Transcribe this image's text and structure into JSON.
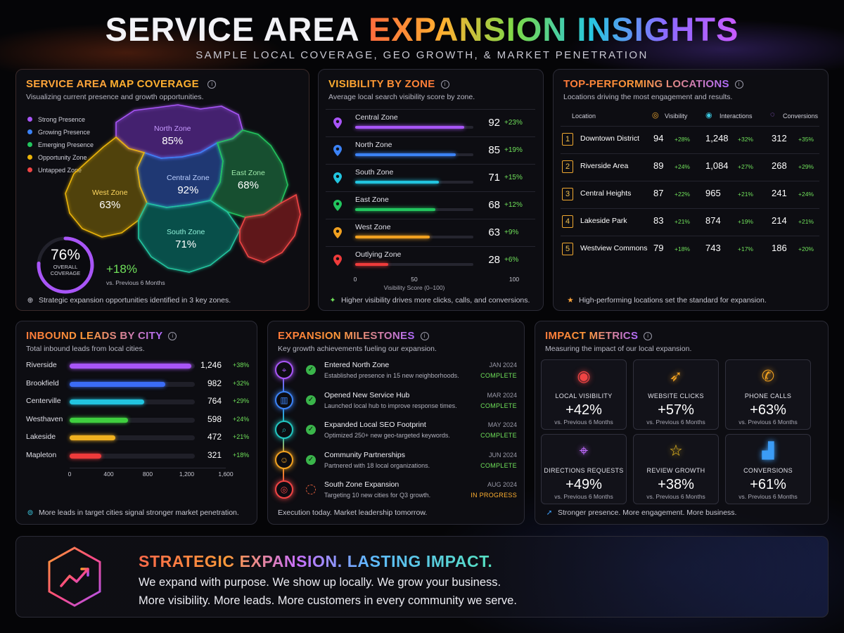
{
  "header": {
    "title_white": "SERVICE AREA",
    "title_gradient": "EXPANSION INSIGHTS",
    "subtitle": "SAMPLE LOCAL COVERAGE, GEO GROWTH, & MARKET PENETRATION"
  },
  "map_panel": {
    "title_a": "SERVICE AREA",
    "title_b": "MAP COVERAGE",
    "subtitle": "Visualizing current presence and growth opportunities.",
    "legend": [
      {
        "label": "Strong Presence",
        "color": "#a855f7"
      },
      {
        "label": "Growing Presence",
        "color": "#3b82f6"
      },
      {
        "label": "Emerging Presence",
        "color": "#22c55e"
      },
      {
        "label": "Opportunity Zone",
        "color": "#eab308"
      },
      {
        "label": "Untapped Zone",
        "color": "#ef4444"
      }
    ],
    "zones": [
      {
        "name": "North Zone",
        "value": "85%"
      },
      {
        "name": "Central Zone",
        "value": "92%"
      },
      {
        "name": "East Zone",
        "value": "68%"
      },
      {
        "name": "West Zone",
        "value": "63%"
      },
      {
        "name": "South Zone",
        "value": "71%"
      }
    ],
    "coverage": {
      "value": "76%",
      "label1": "OVERALL",
      "label2": "COVERAGE",
      "fraction": 0.76
    },
    "growth": {
      "value": "+18%",
      "label": "vs. Previous 6 Months"
    },
    "footer": "Strategic expansion opportunities identified in 3 key zones."
  },
  "chart_data": [
    {
      "type": "bar",
      "title": "VISIBILITY BY ZONE",
      "subtitle": "Average local search visibility score by zone.",
      "categories": [
        "Central Zone",
        "North Zone",
        "South Zone",
        "East Zone",
        "West Zone",
        "Outlying Zone"
      ],
      "values": [
        92,
        85,
        71,
        68,
        63,
        28
      ],
      "changes": [
        "+23%",
        "+19%",
        "+15%",
        "+12%",
        "+9%",
        "+6%"
      ],
      "colors": [
        "#a855f7",
        "#3b82f6",
        "#22c5e0",
        "#22c55e",
        "#f0a020",
        "#ef3b3b"
      ],
      "xlim": [
        0,
        100
      ],
      "xticks": [
        "0",
        "50",
        "100"
      ],
      "xlabel": "Visibility Score (0–100)",
      "footer": "Higher visibility drives more clicks, calls, and conversions."
    },
    {
      "type": "bar",
      "title": "INBOUND LEADS BY CITY",
      "subtitle": "Total inbound leads from local cities.",
      "categories": [
        "Riverside",
        "Brookfield",
        "Centerville",
        "Westhaven",
        "Lakeside",
        "Mapleton"
      ],
      "values": [
        1246,
        982,
        764,
        598,
        472,
        321
      ],
      "display_values": [
        "1,246",
        "982",
        "764",
        "598",
        "472",
        "321"
      ],
      "changes": [
        "+38%",
        "+32%",
        "+29%",
        "+24%",
        "+21%",
        "+18%"
      ],
      "colors": [
        "#a855f7",
        "#3b6cf6",
        "#22c5e0",
        "#3fcf3f",
        "#f0b020",
        "#ef3b3b"
      ],
      "xlim": [
        0,
        1600
      ],
      "xticks": [
        "0",
        "400",
        "800",
        "1,200",
        "1,600"
      ],
      "footer": "More leads in target cities signal stronger market penetration."
    }
  ],
  "locations_panel": {
    "title": "TOP-PERFORMING LOCATIONS",
    "subtitle": "Locations driving the most engagement and results.",
    "columns": [
      "Location",
      "Visibility",
      "Interactions",
      "Conversions"
    ],
    "rows": [
      {
        "rank": "1",
        "name": "Downtown District",
        "vis": "94",
        "vis_chg": "+28%",
        "int": "1,248",
        "int_chg": "+32%",
        "conv": "312",
        "conv_chg": "+35%"
      },
      {
        "rank": "2",
        "name": "Riverside Area",
        "vis": "89",
        "vis_chg": "+24%",
        "int": "1,084",
        "int_chg": "+27%",
        "conv": "268",
        "conv_chg": "+29%"
      },
      {
        "rank": "3",
        "name": "Central Heights",
        "vis": "87",
        "vis_chg": "+22%",
        "int": "965",
        "int_chg": "+21%",
        "conv": "241",
        "conv_chg": "+24%"
      },
      {
        "rank": "4",
        "name": "Lakeside Park",
        "vis": "83",
        "vis_chg": "+21%",
        "int": "874",
        "int_chg": "+19%",
        "conv": "214",
        "conv_chg": "+21%"
      },
      {
        "rank": "5",
        "name": "Westview Commons",
        "vis": "79",
        "vis_chg": "+18%",
        "int": "743",
        "int_chg": "+17%",
        "conv": "186",
        "conv_chg": "+20%"
      }
    ],
    "footer": "High-performing locations set the standard for expansion."
  },
  "milestones_panel": {
    "title": "EXPANSION MILESTONES",
    "subtitle": "Key growth achievements fueling our expansion.",
    "items": [
      {
        "title": "Entered North Zone",
        "desc": "Established presence in 15 new neighborhoods.",
        "date": "JAN 2024",
        "status": "COMPLETE",
        "color": "#a855f7",
        "icon": "map-pin-icon"
      },
      {
        "title": "Opened New Service Hub",
        "desc": "Launched local hub to improve response times.",
        "date": "MAR 2024",
        "status": "COMPLETE",
        "color": "#3b82f6",
        "icon": "building-icon"
      },
      {
        "title": "Expanded Local SEO Footprint",
        "desc": "Optimized 250+ new geo-targeted keywords.",
        "date": "MAY 2024",
        "status": "COMPLETE",
        "color": "#22c5c0",
        "icon": "search-icon"
      },
      {
        "title": "Community Partnerships",
        "desc": "Partnered with 18 local organizations.",
        "date": "JUN 2024",
        "status": "COMPLETE",
        "color": "#f0a020",
        "icon": "people-icon"
      },
      {
        "title": "South Zone Expansion",
        "desc": "Targeting 10 new cities for Q3 growth.",
        "date": "AUG 2024",
        "status": "IN PROGRESS",
        "color": "#ef4444",
        "icon": "target-icon"
      }
    ],
    "footer": "Execution today. Market leadership tomorrow."
  },
  "impact_panel": {
    "title": "IMPACT METRICS",
    "subtitle": "Measuring the impact of our local expansion.",
    "cards": [
      {
        "label": "LOCAL VISIBILITY",
        "value": "+42%",
        "sub": "vs. Previous 6 Months",
        "icon": "eye-icon",
        "color": "#ef4444"
      },
      {
        "label": "WEBSITE CLICKS",
        "value": "+57%",
        "sub": "vs. Previous 6 Months",
        "icon": "cursor-click-icon",
        "color": "#f0a020"
      },
      {
        "label": "PHONE CALLS",
        "value": "+63%",
        "sub": "vs. Previous 6 Months",
        "icon": "phone-icon",
        "color": "#f0a020"
      },
      {
        "label": "DIRECTIONS REQUESTS",
        "value": "+49%",
        "sub": "vs. Previous 6 Months",
        "icon": "map-pin-icon",
        "color": "#c06bff"
      },
      {
        "label": "REVIEW GROWTH",
        "value": "+38%",
        "sub": "vs. Previous 6 Months",
        "icon": "star-icon",
        "color": "#f0c020"
      },
      {
        "label": "CONVERSIONS",
        "value": "+61%",
        "sub": "vs. Previous 6 Months",
        "icon": "bar-chart-icon",
        "color": "#3b9cf6"
      }
    ],
    "footer": "Stronger presence. More engagement. More business."
  },
  "banner": {
    "title": "STRATEGIC EXPANSION. LASTING IMPACT.",
    "line1": "We expand with purpose. We show up locally. We grow your business.",
    "line2": "More visibility. More leads. More customers in every community we serve."
  }
}
